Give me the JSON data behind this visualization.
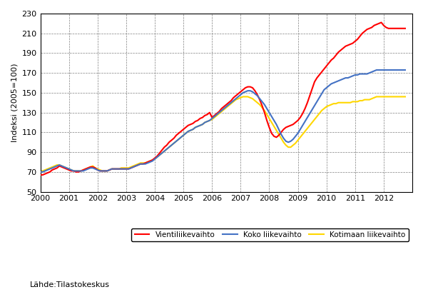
{
  "title": "",
  "ylabel": "Indeksi (2005=100)",
  "source_text": "Lähde:Tilastokeskus",
  "ylim": [
    50,
    230
  ],
  "yticks": [
    50,
    70,
    90,
    110,
    130,
    150,
    170,
    190,
    210,
    230
  ],
  "line_colors": {
    "koko": "#4472C4",
    "kotimainen": "#FFD700",
    "vienti": "#FF0000"
  },
  "legend_labels": [
    "Koko liikevaihto",
    "Kotimaan liikevaihto",
    "Vientiliikevaihto"
  ],
  "background_color": "#FFFFFF",
  "grid_color": "#808080",
  "line_width": 1.5,
  "koko": [
    70,
    70,
    71,
    72,
    73,
    74,
    75,
    76,
    77,
    76,
    75,
    74,
    73,
    72,
    71,
    71,
    71,
    71,
    71,
    72,
    73,
    74,
    74,
    73,
    72,
    71,
    71,
    71,
    71,
    72,
    73,
    73,
    73,
    73,
    73,
    73,
    73,
    73,
    74,
    75,
    76,
    77,
    78,
    78,
    78,
    79,
    80,
    81,
    83,
    85,
    87,
    89,
    91,
    93,
    95,
    97,
    99,
    101,
    103,
    105,
    107,
    109,
    111,
    112,
    113,
    115,
    116,
    117,
    118,
    120,
    121,
    122,
    124,
    126,
    128,
    130,
    132,
    134,
    136,
    138,
    140,
    142,
    144,
    146,
    148,
    150,
    151,
    152,
    152,
    151,
    149,
    147,
    144,
    141,
    138,
    134,
    130,
    126,
    122,
    118,
    113,
    108,
    104,
    101,
    100,
    101,
    103,
    106,
    109,
    113,
    117,
    121,
    125,
    129,
    133,
    137,
    141,
    145,
    149,
    153,
    155,
    157,
    159,
    160,
    161,
    162,
    163,
    164,
    165,
    165,
    166,
    167,
    168,
    168,
    169,
    169,
    169,
    169,
    170,
    171,
    172,
    173,
    173,
    173,
    173,
    173,
    173,
    173,
    173,
    173,
    173,
    173,
    173,
    173
  ],
  "kotimainen": [
    71,
    71,
    72,
    73,
    74,
    75,
    76,
    77,
    77,
    76,
    75,
    74,
    73,
    72,
    71,
    71,
    71,
    71,
    72,
    73,
    74,
    75,
    76,
    74,
    73,
    72,
    71,
    71,
    71,
    72,
    73,
    73,
    73,
    73,
    74,
    74,
    74,
    74,
    75,
    76,
    77,
    78,
    79,
    79,
    79,
    80,
    81,
    82,
    83,
    85,
    87,
    89,
    91,
    93,
    95,
    97,
    99,
    101,
    103,
    105,
    107,
    109,
    111,
    112,
    113,
    115,
    116,
    117,
    118,
    120,
    121,
    122,
    123,
    125,
    127,
    129,
    131,
    133,
    135,
    137,
    139,
    141,
    143,
    144,
    145,
    146,
    146,
    146,
    145,
    144,
    142,
    140,
    138,
    135,
    132,
    128,
    124,
    120,
    116,
    112,
    108,
    104,
    100,
    97,
    95,
    95,
    97,
    99,
    102,
    105,
    108,
    111,
    114,
    117,
    120,
    123,
    126,
    129,
    132,
    134,
    136,
    137,
    138,
    139,
    139,
    140,
    140,
    140,
    140,
    140,
    140,
    141,
    141,
    141,
    142,
    142,
    143,
    143,
    143,
    144,
    145,
    146,
    146,
    146,
    146,
    146,
    146,
    146,
    146,
    146,
    146,
    146,
    146,
    146
  ],
  "vienti": [
    67,
    67,
    68,
    69,
    70,
    72,
    73,
    74,
    76,
    75,
    74,
    73,
    72,
    71,
    71,
    70,
    70,
    71,
    72,
    73,
    74,
    75,
    75,
    74,
    72,
    71,
    71,
    71,
    71,
    72,
    73,
    73,
    73,
    73,
    73,
    73,
    73,
    73,
    74,
    75,
    76,
    77,
    78,
    78,
    79,
    80,
    81,
    82,
    84,
    86,
    89,
    92,
    95,
    97,
    100,
    102,
    104,
    107,
    109,
    111,
    113,
    115,
    117,
    118,
    119,
    121,
    122,
    124,
    125,
    127,
    128,
    130,
    125,
    127,
    129,
    131,
    134,
    136,
    138,
    140,
    142,
    145,
    147,
    149,
    151,
    153,
    155,
    156,
    156,
    155,
    152,
    148,
    143,
    137,
    130,
    122,
    115,
    109,
    106,
    105,
    107,
    110,
    113,
    115,
    116,
    117,
    118,
    120,
    122,
    125,
    129,
    134,
    140,
    147,
    154,
    161,
    165,
    168,
    171,
    174,
    177,
    180,
    183,
    185,
    188,
    191,
    193,
    195,
    197,
    198,
    199,
    200,
    202,
    204,
    207,
    210,
    212,
    214,
    215,
    216,
    218,
    219,
    220,
    221,
    218,
    216,
    215,
    215,
    215,
    215,
    215,
    215,
    215,
    215
  ]
}
